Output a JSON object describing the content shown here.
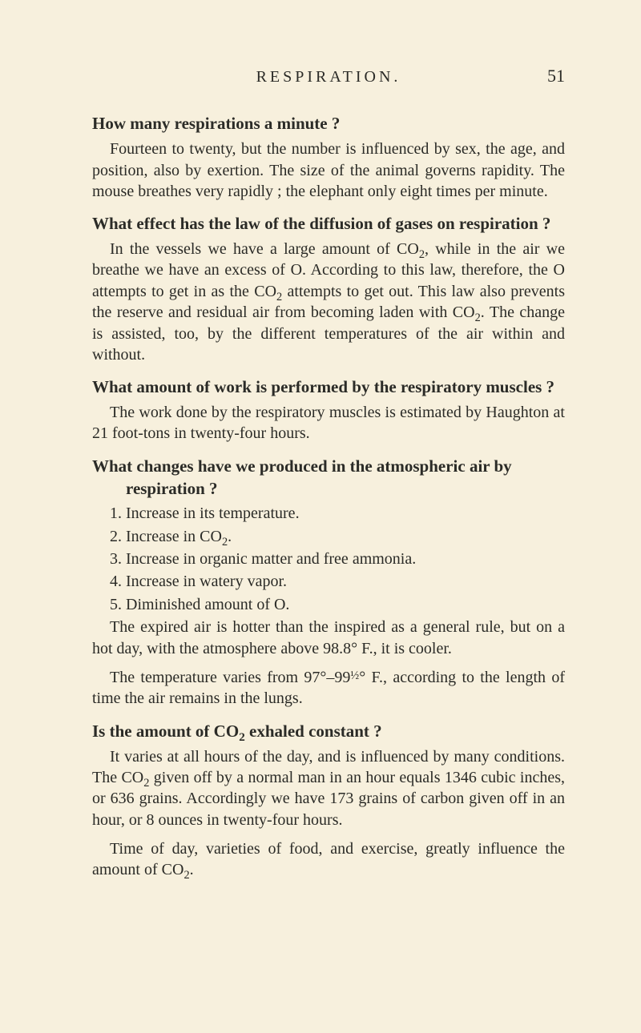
{
  "page": {
    "running_title": "RESPIRATION.",
    "page_number": "51"
  },
  "q1": {
    "question": "How many respirations a minute ?",
    "answer": "Fourteen to twenty, but the number is influenced by sex, the age, and position, also by exertion. The size of the animal governs rapidity. The mouse breathes very rapidly ; the elephant only eight times per minute."
  },
  "q2": {
    "question": "What effect has the law of the diffusion of gases on res­piration ?",
    "a_pre": "In the vessels we have a large amount of CO",
    "a_mid1": ", while in the air we breathe we have an excess of O. According to this law, there­fore, the O attempts to get in as the CO",
    "a_mid2": " attempts to get out. This law also prevents the reserve and residual air from becoming laden with CO",
    "a_post": ". The change is assisted, too, by the different temperatures of the air within and without.",
    "sub": "2"
  },
  "q3": {
    "question": "What amount of work is performed by the respiratory muscles ?",
    "answer": "The work done by the respiratory muscles is estimated by Haughton at 21 foot-tons in twenty-four hours."
  },
  "q4": {
    "question": "What changes have we produced in the atmospheric air by respiration ?",
    "items": {
      "i1": "1. Increase in its temperature.",
      "i2_pre": "2. Increase in CO",
      "i2_post": ".",
      "i3": "3. Increase in organic matter and free ammonia.",
      "i4": "4. Increase in watery vapor.",
      "i5": "5. Diminished amount of O."
    },
    "p1": "The expired air is hotter than the inspired as a general rule, but on a hot day, with the atmosphere above 98.8° F., it is cooler.",
    "p2_pre": "The temperature varies from 97°–99",
    "p2_frac": "½",
    "p2_post": "° F., according to the length of time the air remains in the lungs.",
    "sub": "2"
  },
  "q5": {
    "q_pre": "Is the amount of CO",
    "q_post": " exhaled constant ?",
    "sub": "2",
    "p1_pre": "It varies at all hours of the day, and is influenced by many con­ditions. The CO",
    "p1_post": " given off by a normal man in an hour equals 1346 cubic inches, or 636 grains. Accordingly we have 173 grains of carbon given off in an hour, or 8 ounces in twenty-four hours.",
    "p2_pre": "Time of day, varieties of food, and exercise, greatly influence the amount of CO",
    "p2_post": "."
  }
}
